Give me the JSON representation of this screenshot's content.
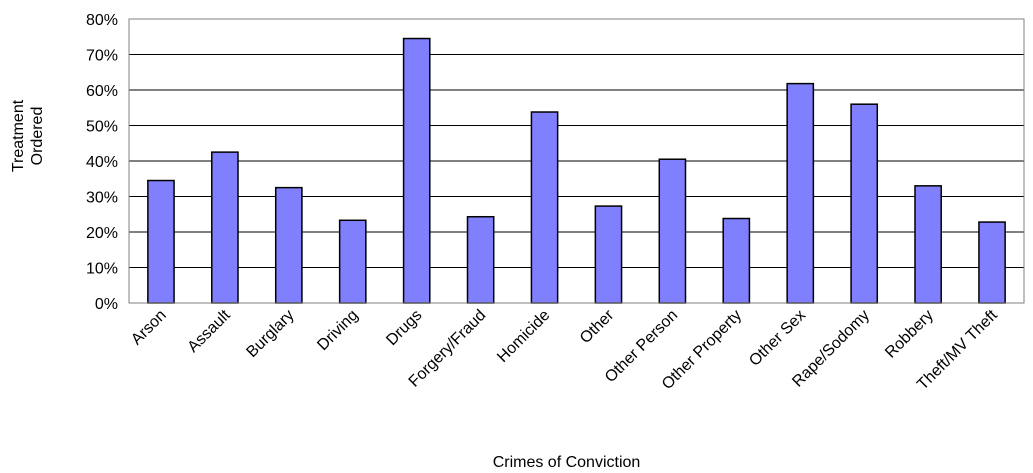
{
  "chart_data": {
    "type": "bar",
    "title": "",
    "xlabel": "Crimes of Conviction",
    "ylabel_lines": [
      "Treatment",
      "Ordered"
    ],
    "ylim": [
      0,
      80
    ],
    "ytick_values": [
      0,
      10,
      20,
      30,
      40,
      50,
      60,
      70,
      80
    ],
    "ytick_labels": [
      "0%",
      "10%",
      "20%",
      "30%",
      "40%",
      "50%",
      "60%",
      "70%",
      "80%"
    ],
    "categories": [
      "Arson",
      "Assault",
      "Burglary",
      "Driving",
      "Drugs",
      "Forgery/Fraud",
      "Homicide",
      "Other",
      "Other Person",
      "Other Property",
      "Other Sex",
      "Rape/Sodomy",
      "Robbery",
      "Theft/MV Theft"
    ],
    "values": [
      34.5,
      42.5,
      32.5,
      23.3,
      74.5,
      24.3,
      53.8,
      27.3,
      40.5,
      23.8,
      61.8,
      56.0,
      33.0,
      22.8
    ],
    "grid": true,
    "bar_color": "#8080ff",
    "bar_edge_color": "#000000",
    "legend": "none"
  }
}
